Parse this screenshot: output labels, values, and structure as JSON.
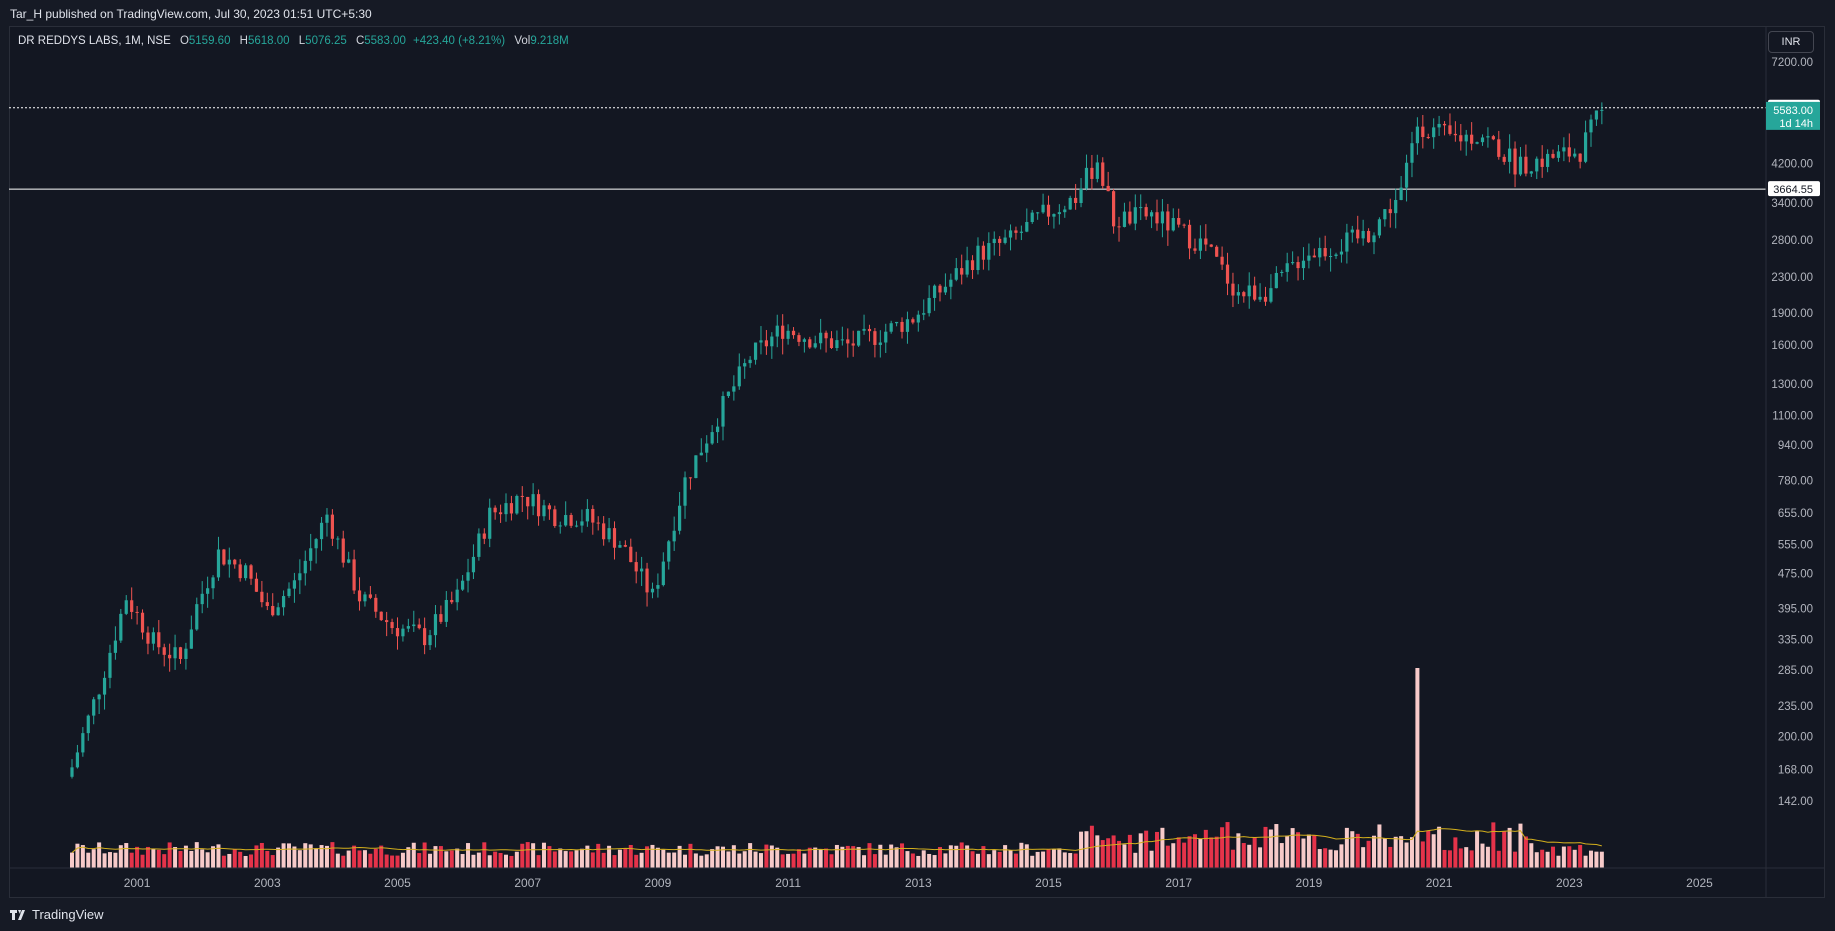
{
  "header": {
    "published": "Tar_H published on TradingView.com, Jul 30, 2023 01:51 UTC+5:30"
  },
  "legend": {
    "symbol": "DR REDDYS LABS, 1M, NSE",
    "open_label": "O",
    "open": "5159.60",
    "high_label": "H",
    "high": "5618.00",
    "low_label": "L",
    "low": "5076.25",
    "close_label": "C",
    "close": "5583.00",
    "change": "+423.40 (+8.21%)",
    "vol_label": "Vol",
    "vol": "9.218M"
  },
  "currency": "INR",
  "footer": {
    "brand": "TradingView"
  },
  "colors": {
    "up": "#26a69a",
    "down": "#ef5350",
    "vol_up": "#f7cac9",
    "vol_down": "#e5334a",
    "vol_ma": "#d4b01c",
    "background": "#131722"
  },
  "chart_data": {
    "type": "candlestick",
    "symbol": "DR REDDYS LABS",
    "interval": "1M",
    "exchange": "NSE",
    "y_scale": "log",
    "y_ticks": [
      142,
      168,
      200,
      235,
      285,
      335,
      395,
      475,
      555,
      655,
      780,
      940,
      1100,
      1300,
      1600,
      1900,
      2300,
      2800,
      3400,
      4200,
      7200
    ],
    "y_tick_labels": [
      "142.00",
      "168.00",
      "200.00",
      "235.00",
      "285.00",
      "335.00",
      "395.00",
      "475.00",
      "555.00",
      "655.00",
      "780.00",
      "940.00",
      "1100.00",
      "1300.00",
      "1600.00",
      "1900.00",
      "2300.00",
      "2800.00",
      "3400.00",
      "4200.00",
      "7200.00"
    ],
    "x_ticks": [
      "2001",
      "2003",
      "2005",
      "2007",
      "2009",
      "2011",
      "2013",
      "2015",
      "2017",
      "2019",
      "2021",
      "2023",
      "2025"
    ],
    "x_range": [
      "2000-01",
      "2026-12"
    ],
    "horizontal_lines": [
      {
        "value": 5645.25,
        "label": "5645.25",
        "style": "dotted"
      },
      {
        "value": 3664.55,
        "label": "3664.55",
        "style": "solid"
      }
    ],
    "last_price": {
      "value": "5583.00",
      "countdown": "1d 14h"
    },
    "approx_close_path": [
      [
        "2000-01",
        170
      ],
      [
        "2000-06",
        260
      ],
      [
        "2000-11",
        420
      ],
      [
        "2001-04",
        330
      ],
      [
        "2001-09",
        300
      ],
      [
        "2001-12",
        400
      ],
      [
        "2002-04",
        530
      ],
      [
        "2002-09",
        480
      ],
      [
        "2003-01",
        390
      ],
      [
        "2003-06",
        450
      ],
      [
        "2003-12",
        650
      ],
      [
        "2004-06",
        420
      ],
      [
        "2004-12",
        360
      ],
      [
        "2005-06",
        340
      ],
      [
        "2005-12",
        420
      ],
      [
        "2006-06",
        650
      ],
      [
        "2006-12",
        720
      ],
      [
        "2007-06",
        650
      ],
      [
        "2007-12",
        640
      ],
      [
        "2008-06",
        560
      ],
      [
        "2008-12",
        420
      ],
      [
        "2009-06",
        780
      ],
      [
        "2009-12",
        1100
      ],
      [
        "2010-06",
        1500
      ],
      [
        "2010-12",
        1750
      ],
      [
        "2011-06",
        1650
      ],
      [
        "2011-12",
        1600
      ],
      [
        "2012-06",
        1700
      ],
      [
        "2012-12",
        1850
      ],
      [
        "2013-06",
        2200
      ],
      [
        "2013-12",
        2600
      ],
      [
        "2014-06",
        2800
      ],
      [
        "2014-12",
        3200
      ],
      [
        "2015-06",
        3500
      ],
      [
        "2015-10",
        4300
      ],
      [
        "2016-01",
        3100
      ],
      [
        "2016-08",
        3200
      ],
      [
        "2017-06",
        2700
      ],
      [
        "2017-12",
        2100
      ],
      [
        "2018-06",
        2150
      ],
      [
        "2018-12",
        2600
      ],
      [
        "2019-06",
        2700
      ],
      [
        "2019-12",
        2900
      ],
      [
        "2020-06",
        3600
      ],
      [
        "2020-09",
        5200
      ],
      [
        "2021-03",
        4800
      ],
      [
        "2021-09",
        4900
      ],
      [
        "2022-03",
        4200
      ],
      [
        "2022-09",
        4300
      ],
      [
        "2023-03",
        4500
      ],
      [
        "2023-07",
        5583
      ]
    ],
    "volume_ma_note": "volume MA"
  }
}
